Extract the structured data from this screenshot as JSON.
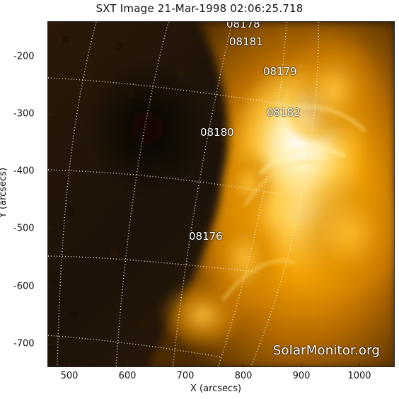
{
  "figure": {
    "title": "SXT Image 21-Mar-1998 02:06:25.718",
    "x_axis_label": "X (arcsecs)",
    "y_axis_label": "Y (arcsecs)",
    "watermark": "SolarMonitor.org"
  },
  "x_ticks": [
    "500",
    "600",
    "700",
    "800",
    "900",
    "1000"
  ],
  "y_ticks": [
    "-200",
    "-300",
    "-400",
    "-500",
    "-600",
    "-700"
  ],
  "regions": [
    {
      "id": "08178",
      "label": "08178"
    },
    {
      "id": "08181",
      "label": "08181"
    },
    {
      "id": "08179",
      "label": "08179"
    },
    {
      "id": "08182",
      "label": "08182"
    },
    {
      "id": "08180",
      "label": "08180"
    },
    {
      "id": "08176",
      "label": "08176"
    }
  ],
  "colors": {
    "background": "#ffffff",
    "axis": "#222222",
    "solar_dark": "#1c1209",
    "solar_mid": "#7a4300",
    "solar_bright": "#ffb000",
    "solar_highlight": "#ffffff"
  }
}
